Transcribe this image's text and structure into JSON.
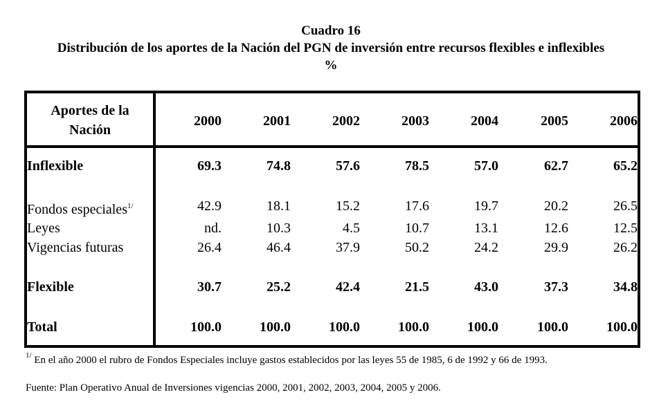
{
  "title": {
    "line1": "Cuadro 16",
    "line2": "Distribución de los aportes de la Nación del PGN de inversión entre recursos flexibles e inflexibles",
    "line3": "%"
  },
  "table": {
    "header_label_line1": "Aportes de la",
    "header_label_line2": "Nación",
    "years": [
      "2000",
      "2001",
      "2002",
      "2003",
      "2004",
      "2005",
      "2006"
    ],
    "rows": [
      {
        "label": "Inflexible",
        "sup": "",
        "bold": true,
        "values": [
          "69.3",
          "74.8",
          "57.6",
          "78.5",
          "57.0",
          "62.7",
          "65.2"
        ]
      },
      {
        "label": "Fondos especiales",
        "sup": "1/",
        "bold": false,
        "values": [
          "42.9",
          "18.1",
          "15.2",
          "17.6",
          "19.7",
          "20.2",
          "26.5"
        ]
      },
      {
        "label": "Leyes",
        "sup": "",
        "bold": false,
        "values": [
          "nd.",
          "10.3",
          "4.5",
          "10.7",
          "13.1",
          "12.6",
          "12.5"
        ]
      },
      {
        "label": "Vigencias futuras",
        "sup": "",
        "bold": false,
        "values": [
          "26.4",
          "46.4",
          "37.9",
          "50.2",
          "24.2",
          "29.9",
          "26.2"
        ]
      },
      {
        "label": "Flexible",
        "sup": "",
        "bold": true,
        "values": [
          "30.7",
          "25.2",
          "42.4",
          "21.5",
          "43.0",
          "37.3",
          "34.8"
        ]
      },
      {
        "label": "Total",
        "sup": "",
        "bold": true,
        "values": [
          "100.0",
          "100.0",
          "100.0",
          "100.0",
          "100.0",
          "100.0",
          "100.0"
        ]
      }
    ]
  },
  "footnote": {
    "marker": "1/",
    "text": "En el año 2000 el rubro de Fondos Especiales incluye gastos establecidos por las leyes 55 de 1985, 6 de 1992 y 66 de 1993."
  },
  "source": "Fuente: Plan Operativo Anual de Inversiones vigencias 2000, 2001, 2002, 2003, 2004, 2005 y 2006."
}
